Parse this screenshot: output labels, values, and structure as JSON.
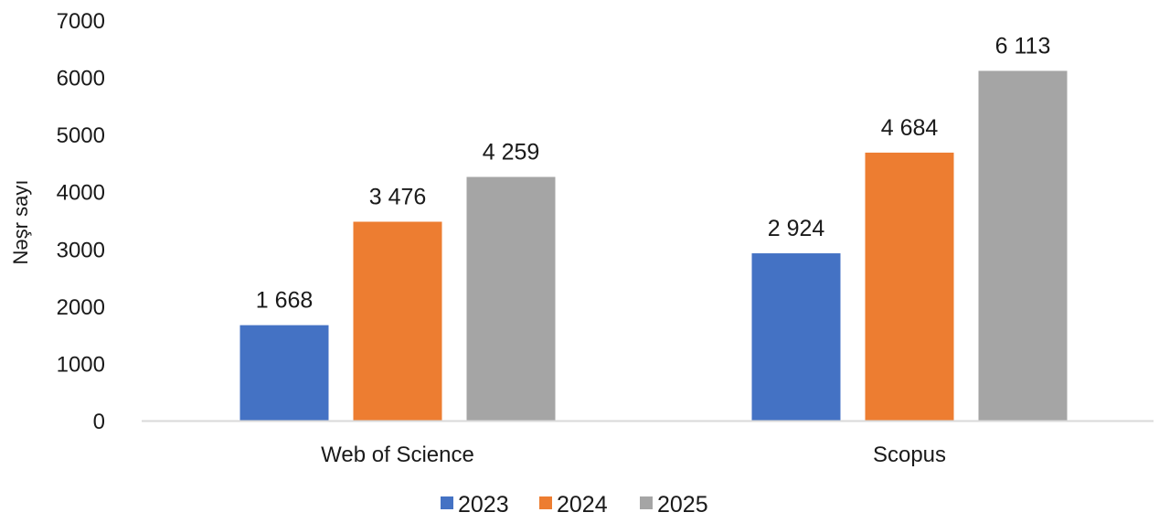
{
  "chart_data": {
    "type": "bar",
    "title": "",
    "xlabel": "",
    "ylabel": "Nəşr sayı",
    "ylim": [
      0,
      7000
    ],
    "yticks": [
      0,
      1000,
      2000,
      3000,
      4000,
      5000,
      6000,
      7000
    ],
    "categories": [
      "Web of Science",
      "Scopus"
    ],
    "series": [
      {
        "name": "2023",
        "color": "#4472C4",
        "values": [
          1668,
          2924
        ],
        "labels": [
          "1 668",
          "2 924"
        ]
      },
      {
        "name": "2024",
        "color": "#ED7D31",
        "values": [
          3476,
          4684
        ],
        "labels": [
          "3 476",
          "4 684"
        ]
      },
      {
        "name": "2025",
        "color": "#A5A5A5",
        "values": [
          4259,
          6113
        ],
        "labels": [
          "4 259",
          "6 113"
        ]
      }
    ],
    "grid": false,
    "legend_position": "bottom",
    "axis_color": "#D9D9D9"
  }
}
